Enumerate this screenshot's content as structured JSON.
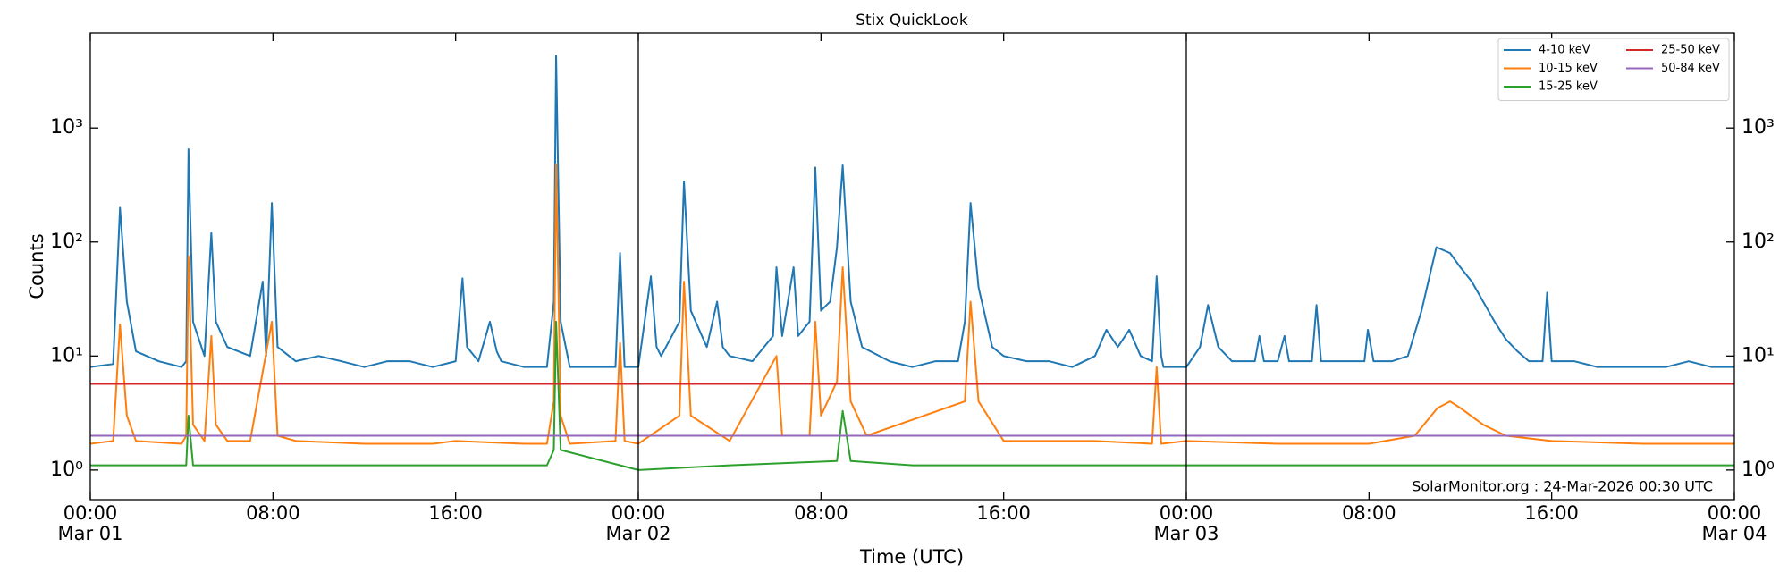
{
  "chart_data": {
    "type": "line",
    "title": "Stix QuickLook",
    "xlabel": "Time (UTC)",
    "ylabel": "Counts",
    "annotation": "SolarMonitor.org : 24-Mar-2026 00:30 UTC",
    "log_y": true,
    "legend": "upper right",
    "legend_columns": 2,
    "xlim": [
      0,
      72
    ],
    "ylim": [
      0.55,
      6800
    ],
    "xticks": [
      {
        "value": 0,
        "label": "00:00",
        "date": "Mar 01"
      },
      {
        "value": 8,
        "label": "08:00"
      },
      {
        "value": 16,
        "label": "16:00"
      },
      {
        "value": 24,
        "label": "00:00",
        "date": "Mar 02"
      },
      {
        "value": 32,
        "label": "08:00"
      },
      {
        "value": 40,
        "label": "16:00"
      },
      {
        "value": 48,
        "label": "00:00",
        "date": "Mar 03"
      },
      {
        "value": 56,
        "label": "08:00"
      },
      {
        "value": 64,
        "label": "16:00"
      },
      {
        "value": 72,
        "label": "00:00",
        "date": "Mar 04"
      }
    ],
    "yticks": [
      {
        "value": 1,
        "label": "10⁰"
      },
      {
        "value": 10,
        "label": "10¹"
      },
      {
        "value": 100,
        "label": "10²"
      },
      {
        "value": 1000,
        "label": "10³"
      }
    ],
    "vlines": [
      24,
      48
    ],
    "series": [
      {
        "name": "4-10 keV",
        "color": "#1f77b4",
        "x": [
          0,
          1,
          1.3,
          1.6,
          2,
          3,
          4,
          4.2,
          4.3,
          4.5,
          5,
          5.3,
          5.5,
          6,
          7,
          7.55,
          7.7,
          7.95,
          8.2,
          9,
          10,
          11,
          12,
          13,
          14,
          15,
          16,
          16.3,
          16.5,
          17,
          17.5,
          17.8,
          18,
          19,
          20,
          20.3,
          20.4,
          20.6,
          21,
          22,
          23,
          23.2,
          23.4,
          24,
          24.55,
          24.8,
          25,
          25.8,
          26,
          26.3,
          27,
          27.45,
          27.7,
          28,
          29,
          29.9,
          30.05,
          30.3,
          30.8,
          31,
          31.5,
          31.75,
          32,
          32.4,
          32.7,
          32.95,
          33.3,
          33.8,
          35,
          36,
          37,
          38,
          38.3,
          38.55,
          38.9,
          39.5,
          40,
          41,
          42,
          43,
          44,
          44.5,
          45,
          45.5,
          46,
          46.5,
          46.7,
          46.9,
          47,
          48,
          48.6,
          48.95,
          49.4,
          50,
          51,
          51.2,
          51.4,
          52,
          52.3,
          52.5,
          53,
          53.5,
          53.7,
          53.9,
          55,
          55.8,
          55.95,
          56.2,
          57,
          57.7,
          58.3,
          58.95,
          59.55,
          60,
          60.5,
          61,
          61.5,
          62,
          62.5,
          63,
          63.6,
          63.8,
          64,
          65,
          66,
          67,
          68,
          69,
          70,
          71,
          72
        ],
        "values": [
          8,
          8.5,
          200,
          30,
          11,
          9,
          8,
          9,
          650,
          20,
          10,
          120,
          20,
          12,
          10,
          45,
          10,
          220,
          12,
          9,
          10,
          9,
          8,
          9,
          9,
          8,
          9,
          48,
          12,
          9,
          20,
          11,
          9,
          8,
          8,
          30,
          4300,
          20,
          8,
          8,
          8,
          80,
          8,
          8,
          50,
          12,
          10,
          20,
          340,
          25,
          12,
          30,
          12,
          10,
          9,
          15,
          60,
          15,
          60,
          15,
          20,
          450,
          25,
          30,
          90,
          470,
          30,
          12,
          9,
          8,
          9,
          9,
          20,
          220,
          40,
          12,
          10,
          9,
          9,
          8,
          10,
          17,
          12,
          17,
          10,
          9,
          50,
          10,
          8,
          8,
          12,
          28,
          12,
          9,
          9,
          15,
          9,
          9,
          15,
          9,
          9,
          9,
          28,
          9,
          9,
          9,
          17,
          9,
          9,
          10,
          25,
          90,
          80,
          60,
          45,
          30,
          20,
          14,
          11,
          9,
          9,
          36,
          9,
          9,
          8,
          8,
          8,
          8,
          9,
          8,
          8
        ]
      },
      {
        "name": "10-15 keV",
        "color": "#ff7f0e",
        "x": [
          0,
          1,
          1.3,
          1.6,
          2,
          4,
          4.2,
          4.3,
          4.5,
          5,
          5.3,
          5.5,
          6,
          7,
          7.95,
          8.2,
          9,
          12,
          15,
          16,
          19,
          20,
          20.3,
          20.4,
          20.6,
          21,
          23,
          23.2,
          23.4,
          24,
          25.8,
          26,
          26.3,
          28,
          30.05,
          30.3,
          31.5,
          31.75,
          32,
          32.7,
          32.95,
          33.3,
          34,
          38.3,
          38.55,
          38.9,
          40,
          44,
          46.5,
          46.7,
          46.9,
          48,
          52,
          56,
          58,
          59,
          59.55,
          60,
          61,
          62,
          64,
          68,
          72
        ],
        "values": [
          1.7,
          1.8,
          19,
          3,
          1.8,
          1.7,
          2,
          75,
          2.5,
          1.8,
          15,
          2.5,
          1.8,
          1.8,
          20,
          2,
          1.8,
          1.7,
          1.7,
          1.8,
          1.7,
          1.7,
          4,
          480,
          3,
          1.7,
          1.8,
          13,
          1.8,
          1.7,
          3,
          45,
          3,
          1.8,
          10,
          2,
          2,
          20,
          3,
          6,
          60,
          4,
          2,
          4,
          30,
          4,
          1.8,
          1.8,
          1.7,
          8,
          1.7,
          1.8,
          1.7,
          1.7,
          2,
          3.5,
          4,
          3.5,
          2.5,
          2,
          1.8,
          1.7,
          1.7
        ]
      },
      {
        "name": "15-25 keV",
        "color": "#2ca02c",
        "x": [
          0,
          4,
          4.2,
          4.3,
          4.5,
          8,
          12,
          16,
          20,
          20.3,
          20.4,
          20.6,
          24,
          28,
          32.7,
          32.95,
          33.3,
          36,
          40,
          44,
          48,
          52,
          56,
          60,
          64,
          68,
          72
        ],
        "values": [
          1.1,
          1.1,
          1.1,
          3,
          1.1,
          1.1,
          1.1,
          1.1,
          1.1,
          1.5,
          20,
          1.5,
          1.0,
          1.1,
          1.2,
          3.3,
          1.2,
          1.1,
          1.1,
          1.1,
          1.1,
          1.1,
          1.1,
          1.1,
          1.1,
          1.1,
          1.1
        ]
      },
      {
        "name": "25-50 keV",
        "color": "#d62728",
        "x": [
          0,
          24,
          48,
          72
        ],
        "values": [
          5.7,
          5.7,
          5.7,
          5.7
        ]
      },
      {
        "name": "50-84 keV",
        "color": "#9467bd",
        "x": [
          0,
          24,
          48,
          72
        ],
        "values": [
          2.0,
          2.0,
          2.0,
          2.0
        ]
      }
    ]
  }
}
